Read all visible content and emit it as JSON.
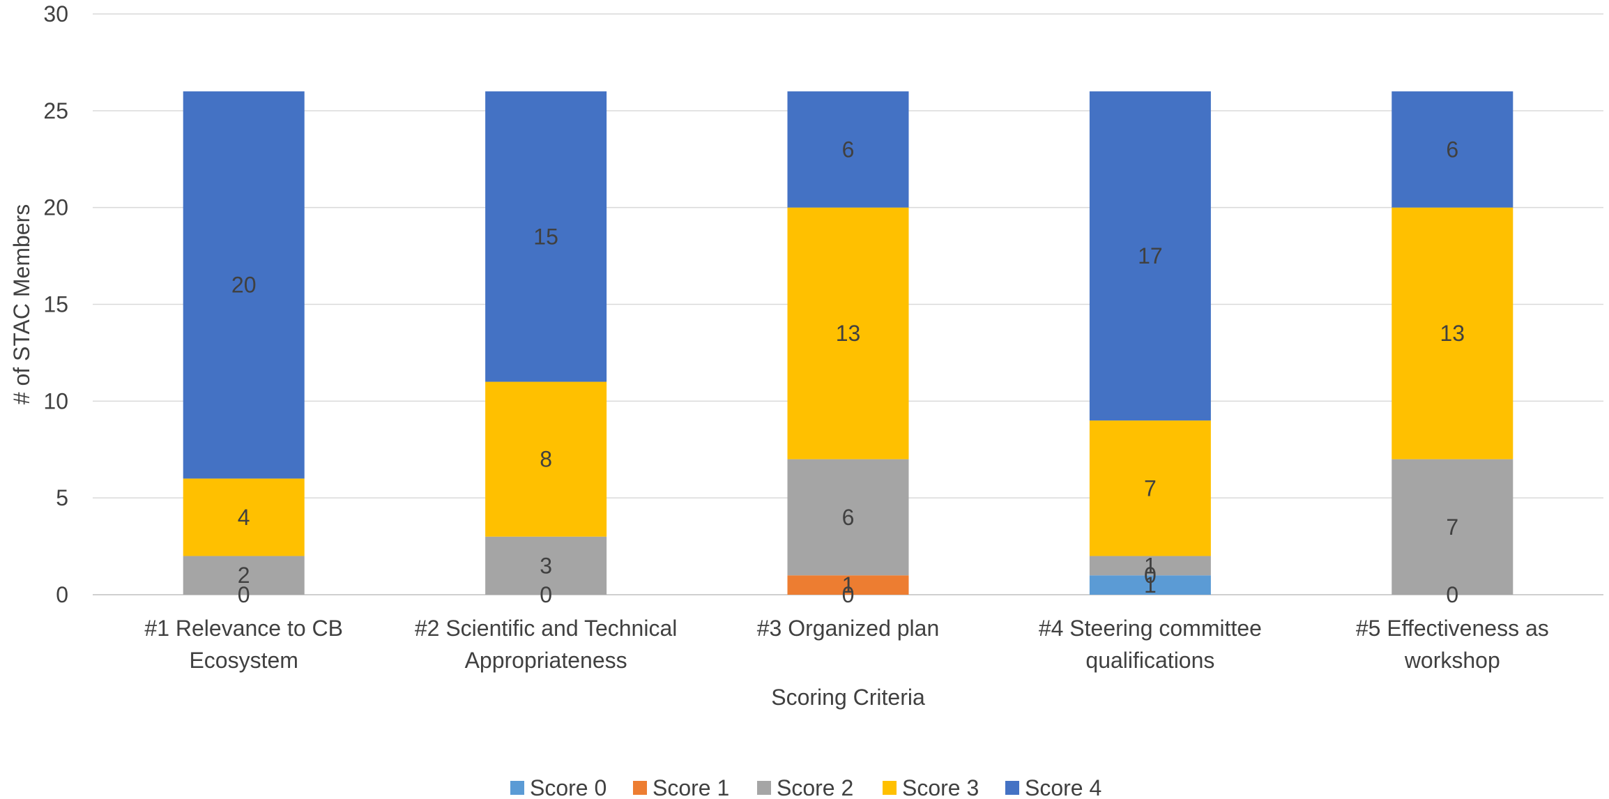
{
  "chart_data": {
    "type": "bar",
    "stacked": true,
    "categories": [
      [
        "#1 Relevance to CB",
        "Ecosystem"
      ],
      [
        "#2 Scientific and Technical",
        "Appropriateness"
      ],
      [
        "#3 Organized plan"
      ],
      [
        "#4 Steering committee",
        "qualifications"
      ],
      [
        "#5 Effectiveness as",
        "workshop"
      ]
    ],
    "series": [
      {
        "name": "Score 0",
        "color": "#5B9BD5",
        "values": [
          0,
          0,
          0,
          1,
          0
        ]
      },
      {
        "name": "Score 1",
        "color": "#ED7D31",
        "values": [
          0,
          0,
          1,
          0,
          0
        ]
      },
      {
        "name": "Score 2",
        "color": "#A5A5A5",
        "values": [
          2,
          3,
          6,
          1,
          7
        ]
      },
      {
        "name": "Score 3",
        "color": "#FFC000",
        "values": [
          4,
          8,
          13,
          7,
          13
        ]
      },
      {
        "name": "Score 4",
        "color": "#4472C4",
        "values": [
          20,
          15,
          6,
          17,
          6
        ]
      }
    ],
    "data_labels": [
      [
        "0",
        "",
        "2",
        "4",
        "20"
      ],
      [
        "0",
        "",
        "3",
        "8",
        "15"
      ],
      [
        "0",
        "1",
        "6",
        "13",
        "6"
      ],
      [
        "1",
        "0",
        "1",
        "7",
        "17"
      ],
      [
        "0",
        "",
        "7",
        "13",
        "6"
      ]
    ],
    "xlabel": "Scoring Criteria",
    "ylabel": "# of STAC Members",
    "ylim": [
      0,
      30
    ],
    "yticks": [
      0,
      5,
      10,
      15,
      20,
      25,
      30
    ],
    "grid": true,
    "legend_position": "bottom"
  }
}
